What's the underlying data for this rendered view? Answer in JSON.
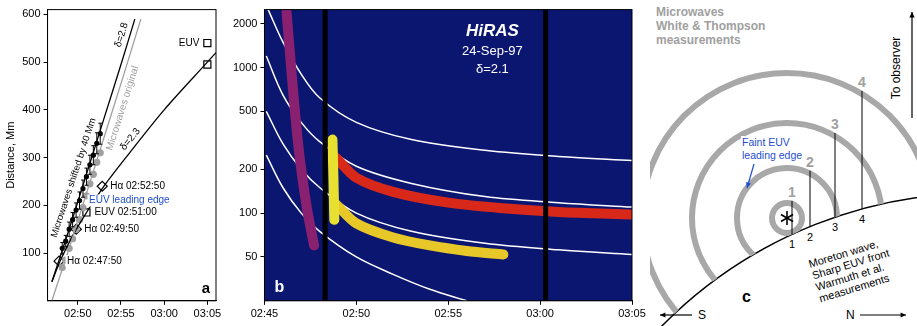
{
  "chart_data": [
    {
      "type": "scatter",
      "panel": "a",
      "y_label": "Distance, Mm",
      "xlim": [
        166.5,
        186
      ],
      "xticks": [
        {
          "value": 170,
          "label": "02:50"
        },
        {
          "value": 175,
          "label": "02:55"
        },
        {
          "value": 180,
          "label": "03:00"
        },
        {
          "value": 185,
          "label": "03:05"
        }
      ],
      "ylim": [
        0,
        610
      ],
      "yticks": [
        100,
        200,
        300,
        400,
        500,
        600
      ],
      "grid": false,
      "series": [
        {
          "name": "Microwaves original",
          "type": "line",
          "color": "#a0a0a0",
          "line_style": "solid",
          "x": [
            167,
            169,
            171,
            173,
            175,
            177.3
          ],
          "values": [
            0,
            110,
            225,
            340,
            455,
            590
          ]
        },
        {
          "name": "δ=2.8",
          "type": "line",
          "color": "#000000",
          "line_style": "solid",
          "x": [
            167,
            169,
            171,
            173,
            175,
            176.6
          ],
          "values": [
            40,
            150,
            265,
            380,
            495,
            590
          ]
        },
        {
          "name": "δ=2.3",
          "type": "line",
          "color": "#000000",
          "line_style": "solid",
          "x": [
            167,
            168,
            169.83,
            172.83,
            176,
            180,
            185,
            186
          ],
          "values": [
            40,
            85,
            150,
            235,
            310,
            400,
            500,
            520
          ]
        },
        {
          "type": "scatter",
          "marker": "circle",
          "color": "#a0a0a0",
          "x": [
            168.2,
            168.6,
            169,
            169.4,
            169.8,
            170.2,
            170.6,
            171,
            171.4,
            171.8,
            172.2,
            172.6
          ],
          "values": [
            70,
            85,
            110,
            130,
            150,
            170,
            195,
            220,
            245,
            265,
            290,
            310
          ]
        },
        {
          "name": "Microwaves shifted by 40 Mm",
          "type": "scatter",
          "marker": "circle",
          "color": "#000000",
          "x": [
            168.2,
            168.6,
            169,
            169.4,
            169.8,
            170.2,
            170.6,
            171,
            171.4,
            171.8,
            172.2,
            172.6
          ],
          "values": [
            110,
            125,
            150,
            170,
            190,
            210,
            235,
            260,
            285,
            305,
            330,
            350
          ],
          "errors": [
            12,
            12,
            15,
            15,
            15,
            18,
            18,
            18,
            20,
            20,
            22,
            22
          ]
        },
        {
          "type": "scatter",
          "marker": "diamond",
          "color": "#000000",
          "x": [
            167.83,
            169.83,
            172.83
          ],
          "values": [
            83,
            150,
            240
          ],
          "point_labels": [
            "Hα 02:47:50",
            "Hα 02:49:50",
            "Hα 02:52:50"
          ]
        },
        {
          "type": "scatter",
          "marker": "square",
          "color": "#000000",
          "x": [
            171,
            185,
            185
          ],
          "values": [
            185,
            540,
            495
          ],
          "point_labels": [
            "EUV 02:51:00",
            "EUV",
            null
          ]
        },
        {
          "type": "scatter",
          "marker": "none",
          "color": "#1f4fd0",
          "x": [
            171.3
          ],
          "values": [
            210
          ],
          "point_labels": [
            "EUV leading edge"
          ]
        }
      ]
    },
    {
      "type": "line",
      "panel": "b",
      "title": "HiRAS",
      "subtitle": "24-Sep-97",
      "annotation": "δ=2.1",
      "log": "y",
      "grid": false,
      "xlim": [
        165,
        185
      ],
      "xticks": [
        {
          "value": 165,
          "label": "02:45"
        },
        {
          "value": 170,
          "label": "02:50"
        },
        {
          "value": 175,
          "label": "02:55"
        },
        {
          "value": 180,
          "label": "03:00"
        },
        {
          "value": 185,
          "label": "03:05"
        }
      ],
      "ylim": [
        25,
        2500
      ],
      "yticks": [
        50,
        100,
        200,
        500,
        1000,
        2000
      ],
      "data_gaps": [
        168.3,
        180.3
      ],
      "bands": [
        {
          "color": "#8a2070",
          "x": [
            166.2,
            166.4,
            166.6,
            166.9,
            167.3,
            167.7
          ],
          "values": [
            2400,
            1200,
            600,
            250,
            110,
            60
          ]
        },
        {
          "color": "#e8e030",
          "x": [
            168.7,
            168.75,
            168.8
          ],
          "values": [
            320,
            180,
            90
          ]
        },
        {
          "color": "#d8281a",
          "x": [
            168.9,
            170,
            172,
            175,
            178,
            181,
            185
          ],
          "values": [
            240,
            175,
            140,
            118,
            108,
            102,
            98
          ]
        },
        {
          "color": "#e8c828",
          "x": [
            168.9,
            170,
            172,
            174,
            176,
            178
          ],
          "values": [
            115,
            85,
            68,
            60,
            55,
            52
          ]
        }
      ],
      "series": [
        {
          "color": "#ffffff",
          "x": [
            165.2,
            166,
            167,
            168,
            170,
            173,
            177,
            181,
            185
          ],
          "values": [
            2500,
            1500,
            900,
            620,
            420,
            320,
            270,
            245,
            230
          ]
        },
        {
          "color": "#ffffff",
          "x": [
            165.1,
            166,
            167,
            168,
            170,
            173,
            177,
            181,
            185
          ],
          "values": [
            1200,
            650,
            420,
            310,
            210,
            160,
            130,
            118,
            110
          ]
        },
        {
          "color": "#ffffff",
          "x": [
            165.1,
            166,
            167,
            168,
            170,
            173,
            177,
            181,
            185
          ],
          "values": [
            500,
            300,
            200,
            150,
            100,
            75,
            62,
            56,
            52
          ]
        },
        {
          "color": "#ffffff",
          "x": [
            165.1,
            166,
            167,
            168,
            170,
            172,
            174,
            176
          ],
          "values": [
            250,
            150,
            100,
            75,
            50,
            38,
            30,
            25
          ]
        }
      ]
    }
  ],
  "diagram": {
    "panel": "c",
    "microwaves_label": [
      "Microwaves",
      "White & Thompson",
      "measurements"
    ],
    "euv_label": [
      "Faint EUV",
      "leading edge"
    ],
    "observer_label": "To observer",
    "moreton_label": [
      "Moreton wave,",
      "Sharp EUV front",
      "Warmuth et al.",
      "measurements"
    ],
    "upper_numbers": [
      "1",
      "2",
      "3",
      "4"
    ],
    "lower_numbers": [
      "1",
      "2",
      "3",
      "4"
    ],
    "south": "S",
    "north": "N"
  }
}
